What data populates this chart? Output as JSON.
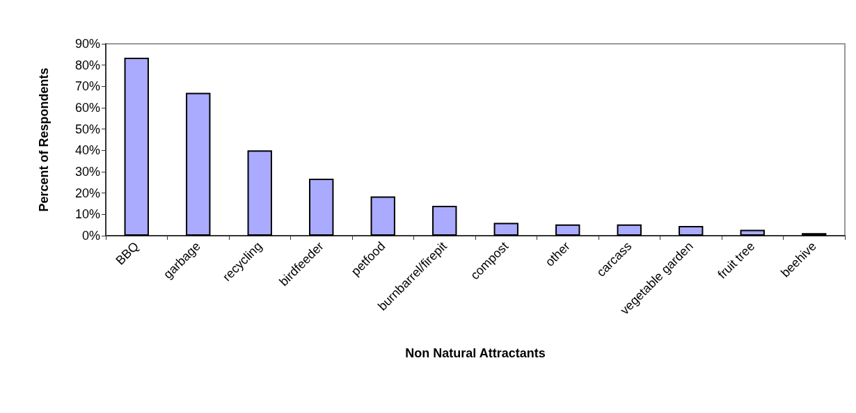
{
  "chart_data": {
    "type": "bar",
    "xlabel": "Non Natural Attractants",
    "ylabel": "Percent of Respondents",
    "categories": [
      "BBQ",
      "garbage",
      "recycling",
      "birdfeeder",
      "petfood",
      "burnbarrel/firepit",
      "compost",
      "other",
      "carcass",
      "vegetable garden",
      "fruit tree",
      "beehive"
    ],
    "values": [
      83.5,
      67,
      40,
      26.7,
      18.4,
      14,
      6,
      5.3,
      5.3,
      4.6,
      2.8,
      1.2
    ],
    "color": "#aaaaff",
    "ylim": [
      0,
      90
    ],
    "yticks": [
      {
        "value": 0,
        "label": "0%"
      },
      {
        "value": 10,
        "label": "10%"
      },
      {
        "value": 20,
        "label": "20%"
      },
      {
        "value": 30,
        "label": "30%"
      },
      {
        "value": 40,
        "label": "40%"
      },
      {
        "value": 50,
        "label": "50%"
      },
      {
        "value": 60,
        "label": "60%"
      },
      {
        "value": 70,
        "label": "70%"
      },
      {
        "value": 80,
        "label": "80%"
      },
      {
        "value": 90,
        "label": "90%"
      }
    ],
    "grid": false
  }
}
